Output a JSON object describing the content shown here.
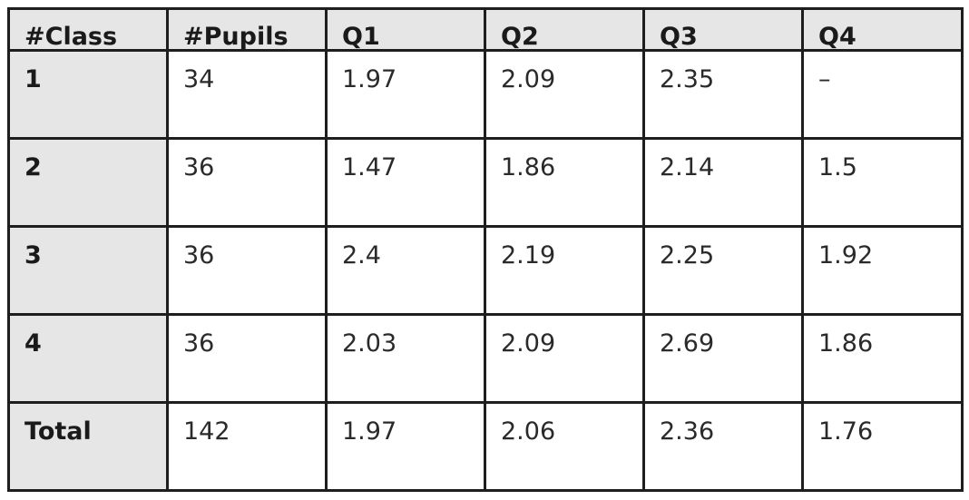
{
  "table": {
    "headers": [
      "#Class",
      "#Pupils",
      "Q1",
      "Q2",
      "Q3",
      "Q4"
    ],
    "rows": [
      [
        "1",
        "34",
        "1.97",
        "2.09",
        "2.35",
        "–"
      ],
      [
        "2",
        "36",
        "1.47",
        "1.86",
        "2.14",
        "1.5"
      ],
      [
        "3",
        "36",
        "2.4",
        "2.19",
        "2.25",
        "1.92"
      ],
      [
        "4",
        "36",
        "2.03",
        "2.09",
        "2.69",
        "1.86"
      ],
      [
        "Total",
        "142",
        "1.97",
        "2.06",
        "2.36",
        "1.76"
      ]
    ]
  },
  "colors": {
    "header_bg": "#e6e6e6",
    "border": "#1e1e1e",
    "cell_bg": "#ffffff"
  }
}
